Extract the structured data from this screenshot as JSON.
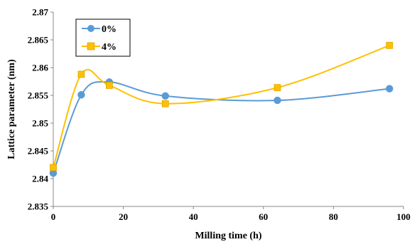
{
  "chart_data": {
    "type": "line",
    "title": "",
    "xlabel": "Milling time (h)",
    "ylabel": "Lattice parameter (nm)",
    "xlim": [
      0,
      100
    ],
    "ylim": [
      2.835,
      2.87
    ],
    "xticks": [
      "0",
      "20",
      "40",
      "60",
      "80",
      "100"
    ],
    "yticks": [
      "2.835",
      "2.84",
      "2.845",
      "2.85",
      "2.855",
      "2.86",
      "2.865",
      "2.87"
    ],
    "grid": false,
    "legend_position": "top-left",
    "smooth": true,
    "series": [
      {
        "name": "0%",
        "marker": "circle",
        "color": "#5b9bd5",
        "x": [
          0,
          8,
          16,
          32,
          64,
          96
        ],
        "y": [
          2.841,
          2.8551,
          2.8574,
          2.8549,
          2.8541,
          2.8562
        ]
      },
      {
        "name": "4%",
        "marker": "square",
        "color": "#ffc000",
        "x": [
          0,
          8,
          16,
          32,
          64,
          96
        ],
        "y": [
          2.842,
          2.8588,
          2.8568,
          2.8535,
          2.8564,
          2.864
        ]
      }
    ]
  }
}
